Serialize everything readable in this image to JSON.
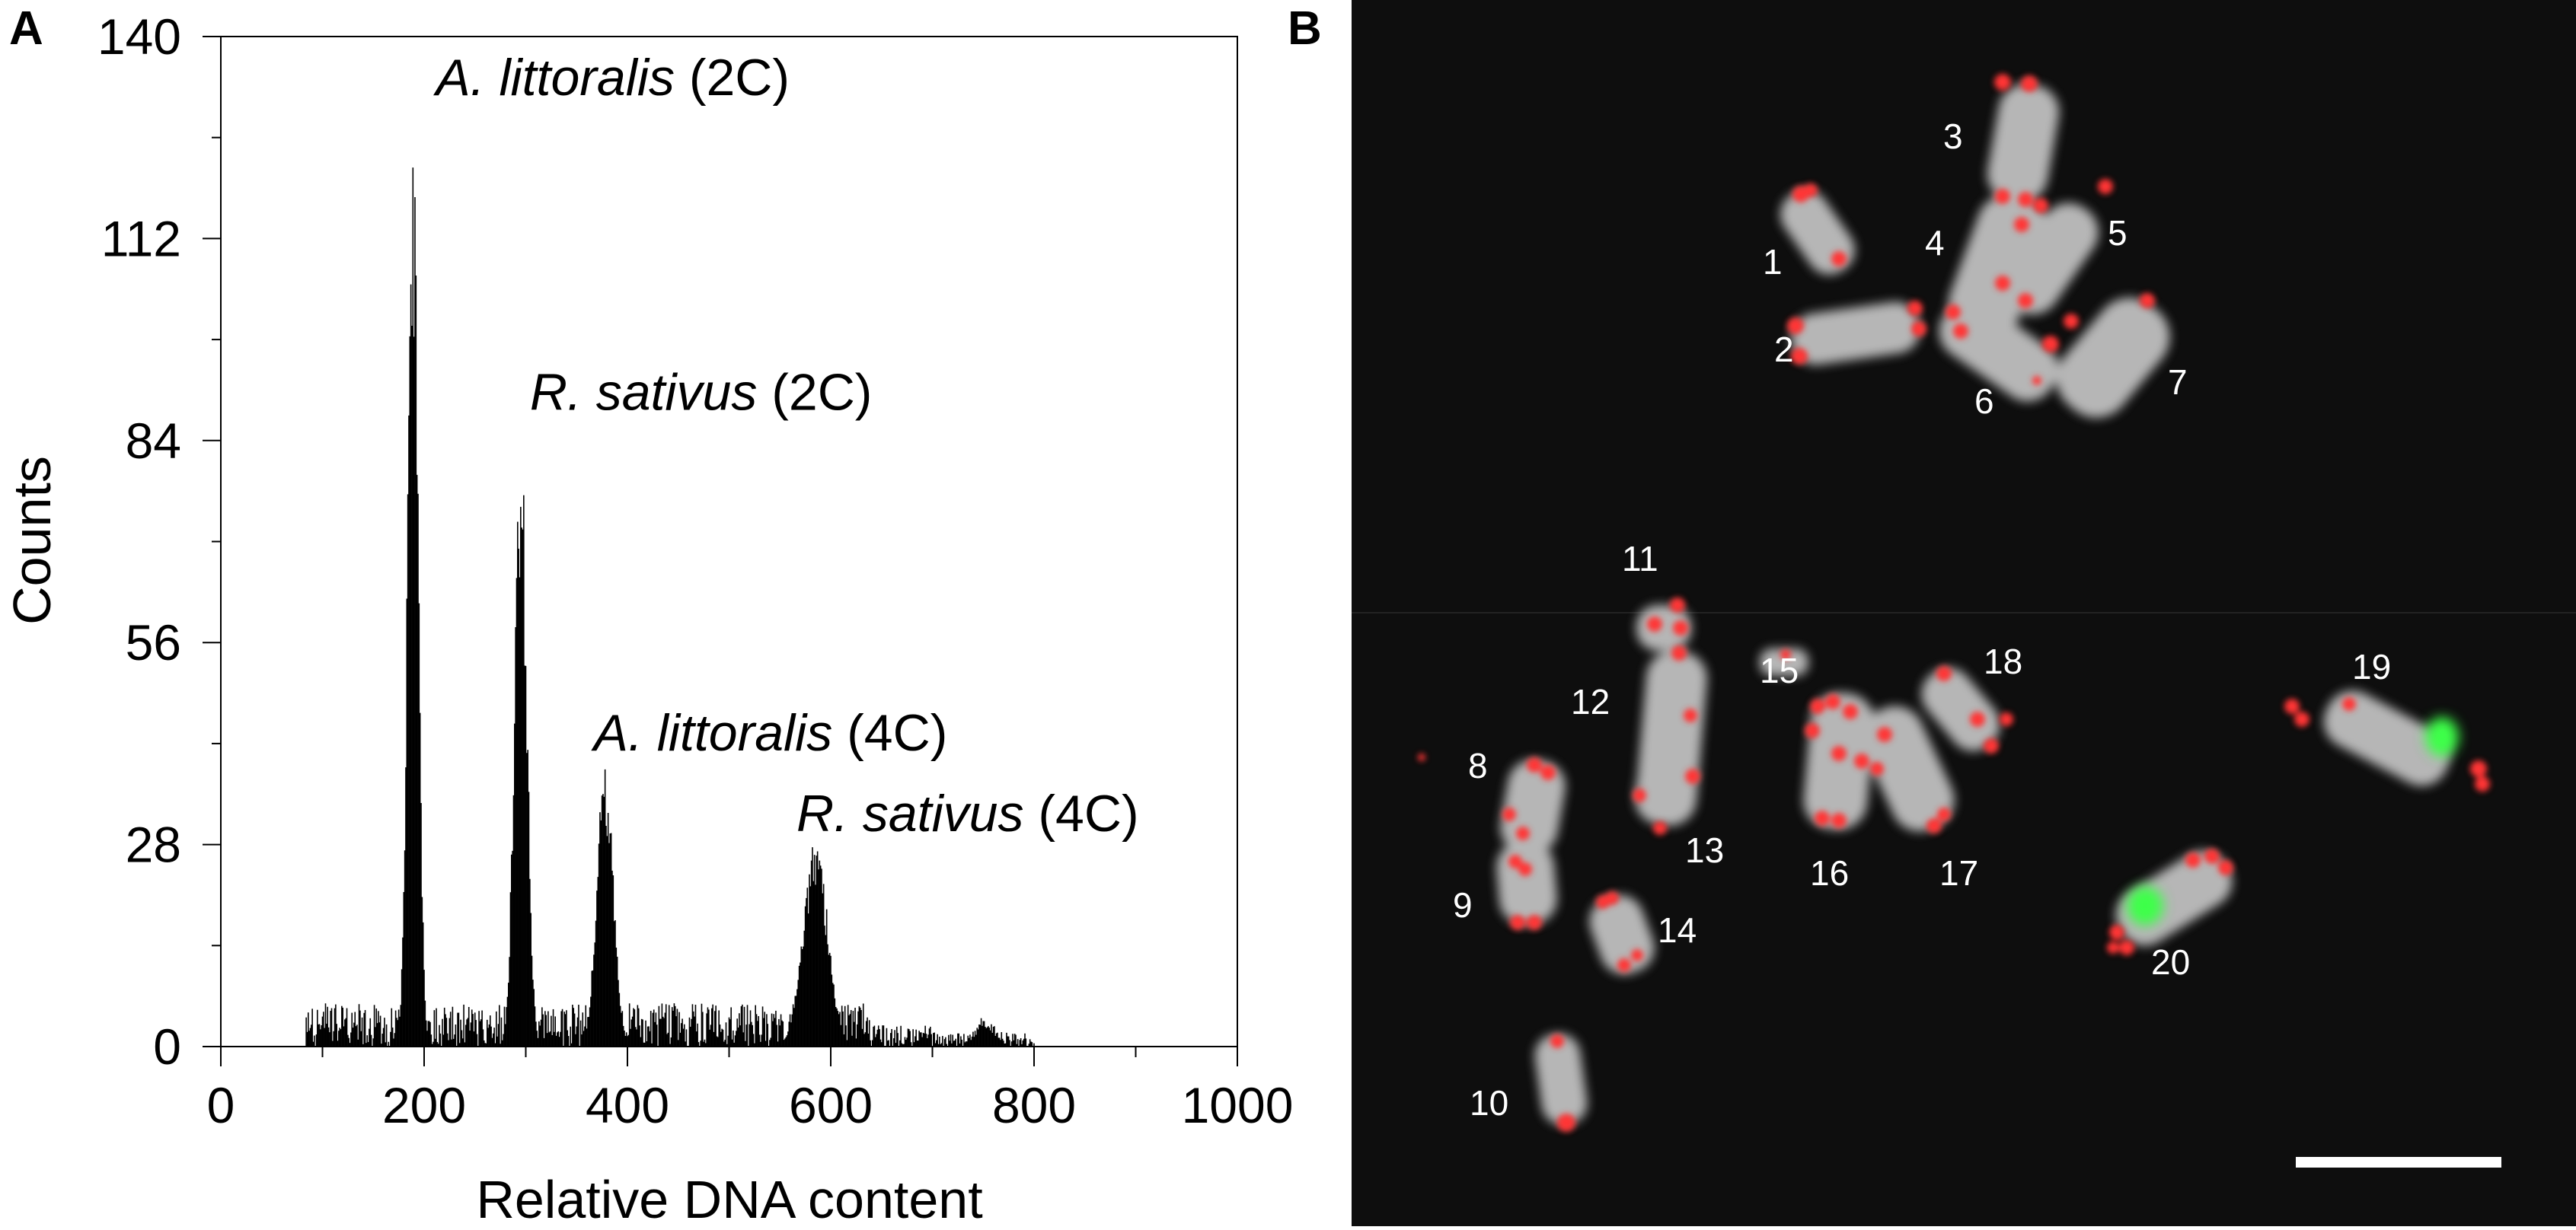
{
  "panel_a_label": "A",
  "panel_b_label": "B",
  "chart_data": {
    "type": "bar",
    "title": "",
    "xlabel": "Relative DNA content",
    "ylabel": "Counts",
    "xlim": [
      0,
      1000
    ],
    "ylim": [
      0,
      140
    ],
    "xticks": [
      0,
      200,
      400,
      600,
      800,
      1000
    ],
    "yticks": [
      0,
      28,
      56,
      84,
      112,
      140
    ],
    "grid": false,
    "peaks": [
      {
        "x": 189,
        "height": 130,
        "width": 5,
        "name_italic": "A. littoralis",
        "ploidy": "(2C)"
      },
      {
        "x": 295,
        "height": 87,
        "width": 6,
        "name_italic": "R. sativus",
        "ploidy": "(2C)"
      },
      {
        "x": 378,
        "height": 40,
        "width": 8,
        "name_italic": "A. littoralis",
        "ploidy": "(4C)"
      },
      {
        "x": 585,
        "height": 29,
        "width": 12,
        "name_italic": "R. sativus",
        "ploidy": "(4C)"
      }
    ],
    "small_peak": {
      "x": 752,
      "height": 4,
      "width": 10
    },
    "background_range": [
      84,
      800
    ],
    "background_level": 6
  },
  "micrograph": {
    "chromosome_labels": [
      "1",
      "2",
      "3",
      "4",
      "5",
      "6",
      "7",
      "8",
      "9",
      "10",
      "11",
      "12",
      "13",
      "14",
      "15",
      "16",
      "17",
      "18",
      "19",
      "20"
    ],
    "signal_colors": {
      "background": "#0e0e0e",
      "chromatin": "#c9c9c9",
      "red": "#ff3b3b",
      "green": "#3dff4a"
    },
    "scale_bar": true
  }
}
